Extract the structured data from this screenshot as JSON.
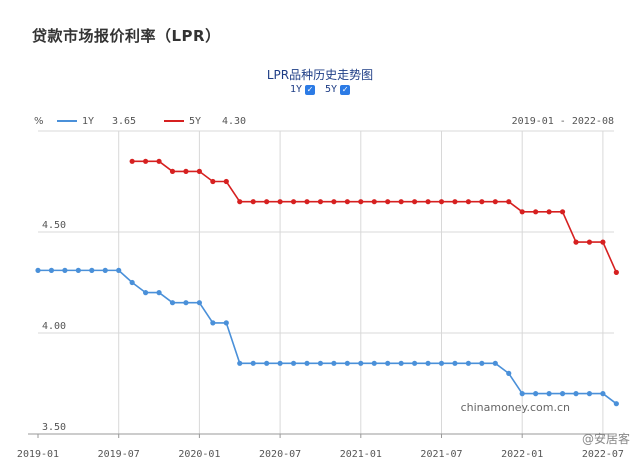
{
  "page": {
    "title": "贷款市场报价利率（LPR）"
  },
  "chart_header": {
    "title": "LPR品种历史走势图",
    "toggles": [
      {
        "label": "1Y",
        "checked": true
      },
      {
        "label": "5Y",
        "checked": true
      }
    ],
    "checkmark": "✓"
  },
  "legend": {
    "unit": "%",
    "items": [
      {
        "name": "1Y",
        "value": "3.65",
        "color": "#4a90d9"
      },
      {
        "name": "5Y",
        "value": "4.30",
        "color": "#d62020"
      }
    ],
    "date_range": "2019-01 - 2022-08"
  },
  "watermark": "chinamoney.com.cn",
  "corner_badge": "@安居客",
  "chart_data": {
    "type": "line",
    "title": "LPR品种历史走势图",
    "x_ticks": [
      "2019-01",
      "2019-07",
      "2020-01",
      "2020-07",
      "2021-01",
      "2021-07",
      "2022-01",
      "2022-07"
    ],
    "y_ticks": [
      "4.50",
      "4.00",
      "3.50"
    ],
    "ylim": [
      3.5,
      5.0
    ],
    "grid": true,
    "legend_position": "top",
    "series": [
      {
        "name": "1Y",
        "color": "#4a90d9",
        "points": [
          [
            "2019-01",
            4.31
          ],
          [
            "2019-02",
            4.31
          ],
          [
            "2019-03",
            4.31
          ],
          [
            "2019-04",
            4.31
          ],
          [
            "2019-05",
            4.31
          ],
          [
            "2019-06",
            4.31
          ],
          [
            "2019-07",
            4.31
          ],
          [
            "2019-08",
            4.25
          ],
          [
            "2019-09",
            4.2
          ],
          [
            "2019-10",
            4.2
          ],
          [
            "2019-11",
            4.15
          ],
          [
            "2019-12",
            4.15
          ],
          [
            "2020-01",
            4.15
          ],
          [
            "2020-02",
            4.05
          ],
          [
            "2020-03",
            4.05
          ],
          [
            "2020-04",
            3.85
          ],
          [
            "2020-05",
            3.85
          ],
          [
            "2020-06",
            3.85
          ],
          [
            "2020-07",
            3.85
          ],
          [
            "2020-08",
            3.85
          ],
          [
            "2020-09",
            3.85
          ],
          [
            "2020-10",
            3.85
          ],
          [
            "2020-11",
            3.85
          ],
          [
            "2020-12",
            3.85
          ],
          [
            "2021-01",
            3.85
          ],
          [
            "2021-02",
            3.85
          ],
          [
            "2021-03",
            3.85
          ],
          [
            "2021-04",
            3.85
          ],
          [
            "2021-05",
            3.85
          ],
          [
            "2021-06",
            3.85
          ],
          [
            "2021-07",
            3.85
          ],
          [
            "2021-08",
            3.85
          ],
          [
            "2021-09",
            3.85
          ],
          [
            "2021-10",
            3.85
          ],
          [
            "2021-11",
            3.85
          ],
          [
            "2021-12",
            3.8
          ],
          [
            "2022-01",
            3.7
          ],
          [
            "2022-02",
            3.7
          ],
          [
            "2022-03",
            3.7
          ],
          [
            "2022-04",
            3.7
          ],
          [
            "2022-05",
            3.7
          ],
          [
            "2022-06",
            3.7
          ],
          [
            "2022-07",
            3.7
          ],
          [
            "2022-08",
            3.65
          ]
        ]
      },
      {
        "name": "5Y",
        "color": "#d62020",
        "points": [
          [
            "2019-08",
            4.85
          ],
          [
            "2019-09",
            4.85
          ],
          [
            "2019-10",
            4.85
          ],
          [
            "2019-11",
            4.8
          ],
          [
            "2019-12",
            4.8
          ],
          [
            "2020-01",
            4.8
          ],
          [
            "2020-02",
            4.75
          ],
          [
            "2020-03",
            4.75
          ],
          [
            "2020-04",
            4.65
          ],
          [
            "2020-05",
            4.65
          ],
          [
            "2020-06",
            4.65
          ],
          [
            "2020-07",
            4.65
          ],
          [
            "2020-08",
            4.65
          ],
          [
            "2020-09",
            4.65
          ],
          [
            "2020-10",
            4.65
          ],
          [
            "2020-11",
            4.65
          ],
          [
            "2020-12",
            4.65
          ],
          [
            "2021-01",
            4.65
          ],
          [
            "2021-02",
            4.65
          ],
          [
            "2021-03",
            4.65
          ],
          [
            "2021-04",
            4.65
          ],
          [
            "2021-05",
            4.65
          ],
          [
            "2021-06",
            4.65
          ],
          [
            "2021-07",
            4.65
          ],
          [
            "2021-08",
            4.65
          ],
          [
            "2021-09",
            4.65
          ],
          [
            "2021-10",
            4.65
          ],
          [
            "2021-11",
            4.65
          ],
          [
            "2021-12",
            4.65
          ],
          [
            "2022-01",
            4.6
          ],
          [
            "2022-02",
            4.6
          ],
          [
            "2022-03",
            4.6
          ],
          [
            "2022-04",
            4.6
          ],
          [
            "2022-05",
            4.45
          ],
          [
            "2022-06",
            4.45
          ],
          [
            "2022-07",
            4.45
          ],
          [
            "2022-08",
            4.3
          ]
        ]
      }
    ]
  }
}
